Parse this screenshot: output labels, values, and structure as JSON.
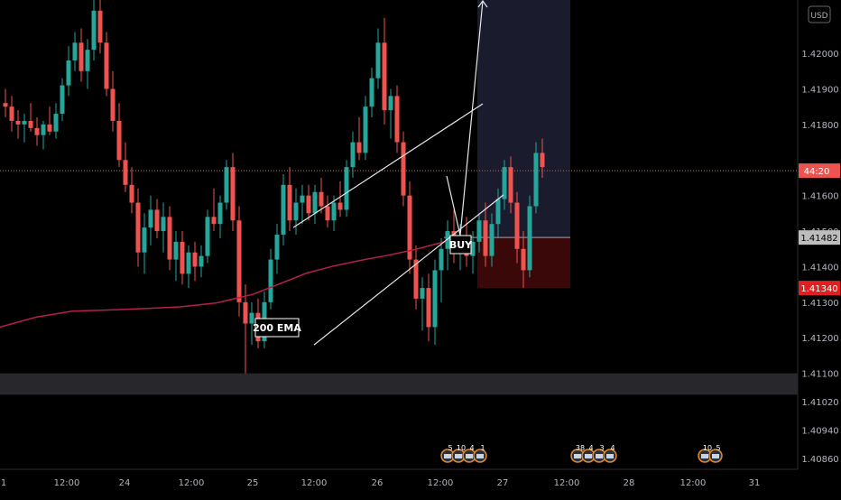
{
  "chart_data": {
    "type": "candlestick",
    "currency_label": "USD",
    "y_axis": {
      "ylim": [
        1.4083,
        1.4215
      ],
      "tick_labels": [
        "1.42000",
        "1.41900",
        "1.41800",
        "1.41600",
        "1.41500",
        "1.41400",
        "1.41300",
        "1.41200",
        "1.41100",
        "1.41020",
        "1.40940",
        "1.40860"
      ],
      "tick_values": [
        1.42,
        1.419,
        1.418,
        1.416,
        1.415,
        1.414,
        1.413,
        1.412,
        1.411,
        1.4102,
        1.4094,
        1.4086
      ]
    },
    "x_axis": {
      "tick_labels": [
        "1",
        "12:00",
        "24",
        "12:00",
        "25",
        "12:00",
        "26",
        "12:00",
        "27",
        "12:00",
        "28",
        "12:00",
        "31"
      ]
    },
    "price_tags": {
      "countdown": "44:20",
      "countdown_price": 1.4167,
      "current": "1.41482",
      "current_price": 1.41482,
      "stop": "1.41340",
      "stop_price": 1.4134
    },
    "annotations": {
      "ema_label": "200 EMA",
      "buy_label": "BUY"
    },
    "position": {
      "entry": 1.41482,
      "target": 1.4215,
      "stop": 1.4134
    },
    "support_zone": [
      1.4104,
      1.411
    ],
    "events": [
      {
        "pos": "a",
        "counts": [
          "5",
          "10",
          "4",
          "1"
        ]
      },
      {
        "pos": "b",
        "counts": [
          "38",
          "4",
          "3",
          "4"
        ]
      },
      {
        "pos": "c",
        "counts": [
          "10",
          "5"
        ]
      }
    ],
    "candles": [
      [
        1.4186,
        1.419,
        1.4182,
        1.4185
      ],
      [
        1.4185,
        1.4188,
        1.4178,
        1.4181
      ],
      [
        1.4181,
        1.4184,
        1.4176,
        1.418
      ],
      [
        1.418,
        1.4183,
        1.4175,
        1.4181
      ],
      [
        1.4181,
        1.4186,
        1.4178,
        1.4179
      ],
      [
        1.4179,
        1.4182,
        1.4174,
        1.4177
      ],
      [
        1.4177,
        1.4181,
        1.4173,
        1.418
      ],
      [
        1.418,
        1.4185,
        1.4177,
        1.4178
      ],
      [
        1.4178,
        1.4186,
        1.4176,
        1.4183
      ],
      [
        1.4183,
        1.4193,
        1.4181,
        1.4191
      ],
      [
        1.4191,
        1.4202,
        1.4188,
        1.4198
      ],
      [
        1.4198,
        1.4206,
        1.4195,
        1.4203
      ],
      [
        1.4203,
        1.4207,
        1.4192,
        1.4195
      ],
      [
        1.4195,
        1.4204,
        1.419,
        1.4201
      ],
      [
        1.4201,
        1.4215,
        1.4198,
        1.4212
      ],
      [
        1.4212,
        1.4215,
        1.42,
        1.4203
      ],
      [
        1.4203,
        1.4206,
        1.4188,
        1.419
      ],
      [
        1.419,
        1.4195,
        1.4178,
        1.4181
      ],
      [
        1.4181,
        1.4186,
        1.4168,
        1.417
      ],
      [
        1.417,
        1.4175,
        1.4161,
        1.4163
      ],
      [
        1.4163,
        1.4168,
        1.4155,
        1.4158
      ],
      [
        1.4158,
        1.4162,
        1.414,
        1.4144
      ],
      [
        1.4144,
        1.4155,
        1.4138,
        1.4151
      ],
      [
        1.4151,
        1.416,
        1.4146,
        1.4156
      ],
      [
        1.4156,
        1.4159,
        1.4148,
        1.415
      ],
      [
        1.415,
        1.4158,
        1.4144,
        1.4154
      ],
      [
        1.4154,
        1.4157,
        1.4139,
        1.4142
      ],
      [
        1.4142,
        1.415,
        1.4136,
        1.4147
      ],
      [
        1.4147,
        1.415,
        1.4135,
        1.4138
      ],
      [
        1.4138,
        1.4146,
        1.4134,
        1.4144
      ],
      [
        1.4144,
        1.4147,
        1.4136,
        1.414
      ],
      [
        1.414,
        1.4146,
        1.4137,
        1.4143
      ],
      [
        1.4143,
        1.4156,
        1.4141,
        1.4154
      ],
      [
        1.4154,
        1.4162,
        1.415,
        1.4152
      ],
      [
        1.4152,
        1.416,
        1.4148,
        1.4158
      ],
      [
        1.4158,
        1.417,
        1.4156,
        1.4168
      ],
      [
        1.4168,
        1.4172,
        1.415,
        1.4153
      ],
      [
        1.4153,
        1.4157,
        1.4126,
        1.413
      ],
      [
        1.413,
        1.4135,
        1.411,
        1.4124
      ],
      [
        1.4124,
        1.413,
        1.4118,
        1.4127
      ],
      [
        1.4127,
        1.4131,
        1.4117,
        1.4119
      ],
      [
        1.4119,
        1.4133,
        1.4117,
        1.413
      ],
      [
        1.413,
        1.4145,
        1.4128,
        1.4142
      ],
      [
        1.4142,
        1.4152,
        1.4138,
        1.4149
      ],
      [
        1.4149,
        1.4166,
        1.4146,
        1.4163
      ],
      [
        1.4163,
        1.4168,
        1.415,
        1.4153
      ],
      [
        1.4153,
        1.4162,
        1.4149,
        1.4158
      ],
      [
        1.4158,
        1.4163,
        1.4152,
        1.416
      ],
      [
        1.416,
        1.4163,
        1.4153,
        1.4155
      ],
      [
        1.4155,
        1.4163,
        1.4152,
        1.4161
      ],
      [
        1.4161,
        1.4165,
        1.4155,
        1.4157
      ],
      [
        1.4157,
        1.416,
        1.4151,
        1.4153
      ],
      [
        1.4153,
        1.416,
        1.415,
        1.4158
      ],
      [
        1.4158,
        1.4164,
        1.4154,
        1.4156
      ],
      [
        1.4156,
        1.417,
        1.4154,
        1.4168
      ],
      [
        1.4168,
        1.4178,
        1.4165,
        1.4175
      ],
      [
        1.4175,
        1.4182,
        1.417,
        1.4172
      ],
      [
        1.4172,
        1.4188,
        1.417,
        1.4185
      ],
      [
        1.4185,
        1.4196,
        1.4182,
        1.4193
      ],
      [
        1.4193,
        1.4207,
        1.419,
        1.4203
      ],
      [
        1.4203,
        1.421,
        1.418,
        1.4184
      ],
      [
        1.4184,
        1.419,
        1.4176,
        1.4188
      ],
      [
        1.4188,
        1.4191,
        1.4172,
        1.4175
      ],
      [
        1.4175,
        1.4178,
        1.4157,
        1.416
      ],
      [
        1.416,
        1.4164,
        1.4138,
        1.4142
      ],
      [
        1.4142,
        1.4146,
        1.4128,
        1.4131
      ],
      [
        1.4131,
        1.4137,
        1.4122,
        1.4134
      ],
      [
        1.4134,
        1.4138,
        1.4119,
        1.4123
      ],
      [
        1.4123,
        1.4142,
        1.4118,
        1.4139
      ],
      [
        1.4139,
        1.4148,
        1.413,
        1.4145
      ],
      [
        1.4145,
        1.4153,
        1.4139,
        1.415
      ],
      [
        1.415,
        1.4156,
        1.4141,
        1.4144
      ],
      [
        1.4144,
        1.4152,
        1.4139,
        1.4148
      ],
      [
        1.4148,
        1.4154,
        1.414,
        1.4143
      ],
      [
        1.4143,
        1.415,
        1.4138,
        1.4147
      ],
      [
        1.4147,
        1.4155,
        1.4144,
        1.4153
      ],
      [
        1.4153,
        1.4158,
        1.414,
        1.4143
      ],
      [
        1.4143,
        1.4155,
        1.414,
        1.4152
      ],
      [
        1.4152,
        1.4162,
        1.4148,
        1.4159
      ],
      [
        1.4159,
        1.417,
        1.4156,
        1.4168
      ],
      [
        1.4168,
        1.4171,
        1.4155,
        1.4158
      ],
      [
        1.4158,
        1.4161,
        1.4141,
        1.4145
      ],
      [
        1.4145,
        1.415,
        1.4134,
        1.4139
      ],
      [
        1.4139,
        1.416,
        1.4137,
        1.4157
      ],
      [
        1.4157,
        1.4175,
        1.4155,
        1.4172
      ],
      [
        1.4172,
        1.4176,
        1.4165,
        1.4168
      ]
    ],
    "ema": [
      [
        0,
        1.4123
      ],
      [
        40,
        1.41258
      ],
      [
        80,
        1.41275
      ],
      [
        120,
        1.41278
      ],
      [
        160,
        1.41282
      ],
      [
        200,
        1.41287
      ],
      [
        240,
        1.41298
      ],
      [
        280,
        1.41322
      ],
      [
        310,
        1.41352
      ],
      [
        340,
        1.41382
      ],
      [
        370,
        1.41402
      ],
      [
        400,
        1.41418
      ],
      [
        430,
        1.41432
      ],
      [
        460,
        1.41448
      ],
      [
        495,
        1.41472
      ]
    ],
    "channel_upper": [
      [
        325,
        1.4151
      ],
      [
        535,
        1.41858
      ]
    ],
    "channel_lower": [
      [
        348,
        1.4118
      ],
      [
        558,
        1.41602
      ]
    ],
    "projection": [
      [
        495,
        1.41655
      ],
      [
        510,
        1.41488
      ],
      [
        535,
        1.4215
      ]
    ]
  }
}
